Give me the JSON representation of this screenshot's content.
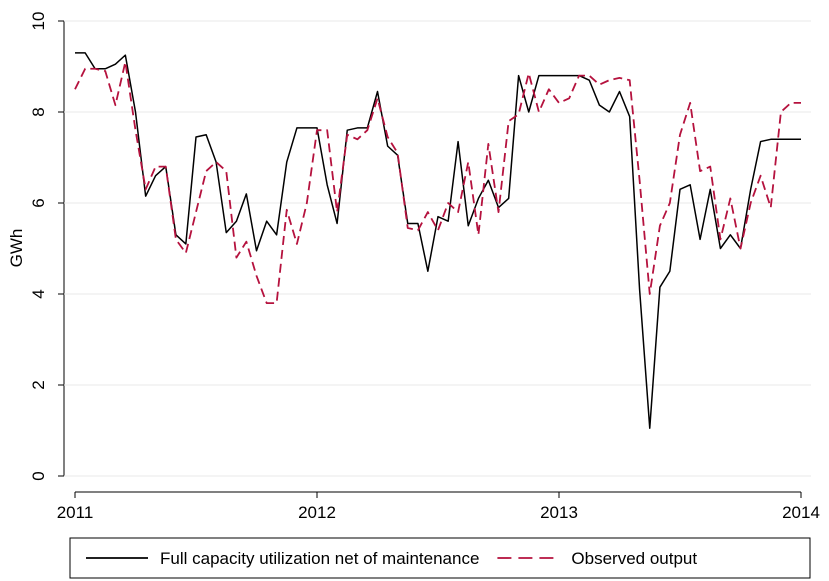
{
  "chart_data": {
    "type": "line",
    "y_label": "GWh",
    "x": [
      2011,
      2011.042,
      2011.083,
      2011.125,
      2011.167,
      2011.208,
      2011.25,
      2011.292,
      2011.333,
      2011.375,
      2011.417,
      2011.458,
      2011.5,
      2011.542,
      2011.583,
      2011.625,
      2011.667,
      2011.708,
      2011.75,
      2011.792,
      2011.833,
      2011.875,
      2011.917,
      2011.958,
      2012,
      2012.042,
      2012.083,
      2012.125,
      2012.167,
      2012.208,
      2012.25,
      2012.292,
      2012.333,
      2012.375,
      2012.417,
      2012.458,
      2012.5,
      2012.542,
      2012.583,
      2012.625,
      2012.667,
      2012.708,
      2012.75,
      2012.792,
      2012.833,
      2012.875,
      2012.917,
      2012.958,
      2013,
      2013.042,
      2013.083,
      2013.125,
      2013.167,
      2013.208,
      2013.25,
      2013.292,
      2013.333,
      2013.375,
      2013.417,
      2013.458,
      2013.5,
      2013.542,
      2013.583,
      2013.625,
      2013.667,
      2013.708,
      2013.75,
      2013.792,
      2013.833,
      2013.875,
      2013.917,
      2013.958,
      2014
    ],
    "series": [
      {
        "name": "Full capacity utilization net of maintenance",
        "color": "#000000",
        "dash": false,
        "values": [
          9.3,
          9.3,
          8.95,
          8.95,
          9.05,
          9.25,
          8.0,
          6.15,
          6.6,
          6.8,
          5.3,
          5.1,
          7.45,
          7.5,
          6.9,
          5.35,
          5.6,
          6.2,
          4.95,
          5.6,
          5.3,
          6.9,
          7.65,
          7.65,
          7.65,
          6.4,
          5.55,
          7.6,
          7.65,
          7.65,
          8.45,
          7.25,
          7.05,
          5.55,
          5.55,
          4.5,
          5.7,
          5.6,
          7.35,
          5.5,
          6.1,
          6.5,
          5.9,
          6.1,
          8.8,
          8.0,
          8.8,
          8.8,
          8.8,
          8.8,
          8.8,
          8.7,
          8.15,
          8.0,
          8.45,
          7.9,
          4.1,
          1.05,
          4.15,
          4.5,
          6.3,
          6.4,
          5.2,
          6.3,
          5.0,
          5.3,
          5.0,
          6.3,
          7.35,
          7.4,
          7.4,
          7.4,
          7.4
        ]
      },
      {
        "name": "Observed output",
        "color": "#b5123e",
        "dash": true,
        "values": [
          8.5,
          8.95,
          8.95,
          8.9,
          8.15,
          9.1,
          7.6,
          6.3,
          6.8,
          6.8,
          5.2,
          4.9,
          5.8,
          6.7,
          6.9,
          6.7,
          4.8,
          5.15,
          4.4,
          3.8,
          3.8,
          5.85,
          5.1,
          6.0,
          7.6,
          7.6,
          5.8,
          7.5,
          7.4,
          7.6,
          8.3,
          7.45,
          7.1,
          5.45,
          5.4,
          5.8,
          5.4,
          6.0,
          5.8,
          6.9,
          5.3,
          7.3,
          5.8,
          7.8,
          7.95,
          8.85,
          8.0,
          8.5,
          8.2,
          8.3,
          8.8,
          8.8,
          8.6,
          8.7,
          8.75,
          8.7,
          6.5,
          4.0,
          5.5,
          6.0,
          7.5,
          8.2,
          6.7,
          6.8,
          5.2,
          6.1,
          5.0,
          6.0,
          6.6,
          5.9,
          8.0,
          8.2,
          8.2
        ]
      }
    ],
    "xlim": [
      2011,
      2014
    ],
    "xticks": [
      2011,
      2012,
      2013,
      2014
    ],
    "ylim": [
      0,
      10
    ],
    "yticks": [
      0,
      2,
      4,
      6,
      8,
      10
    ],
    "grid": true,
    "legend": "bottom"
  }
}
